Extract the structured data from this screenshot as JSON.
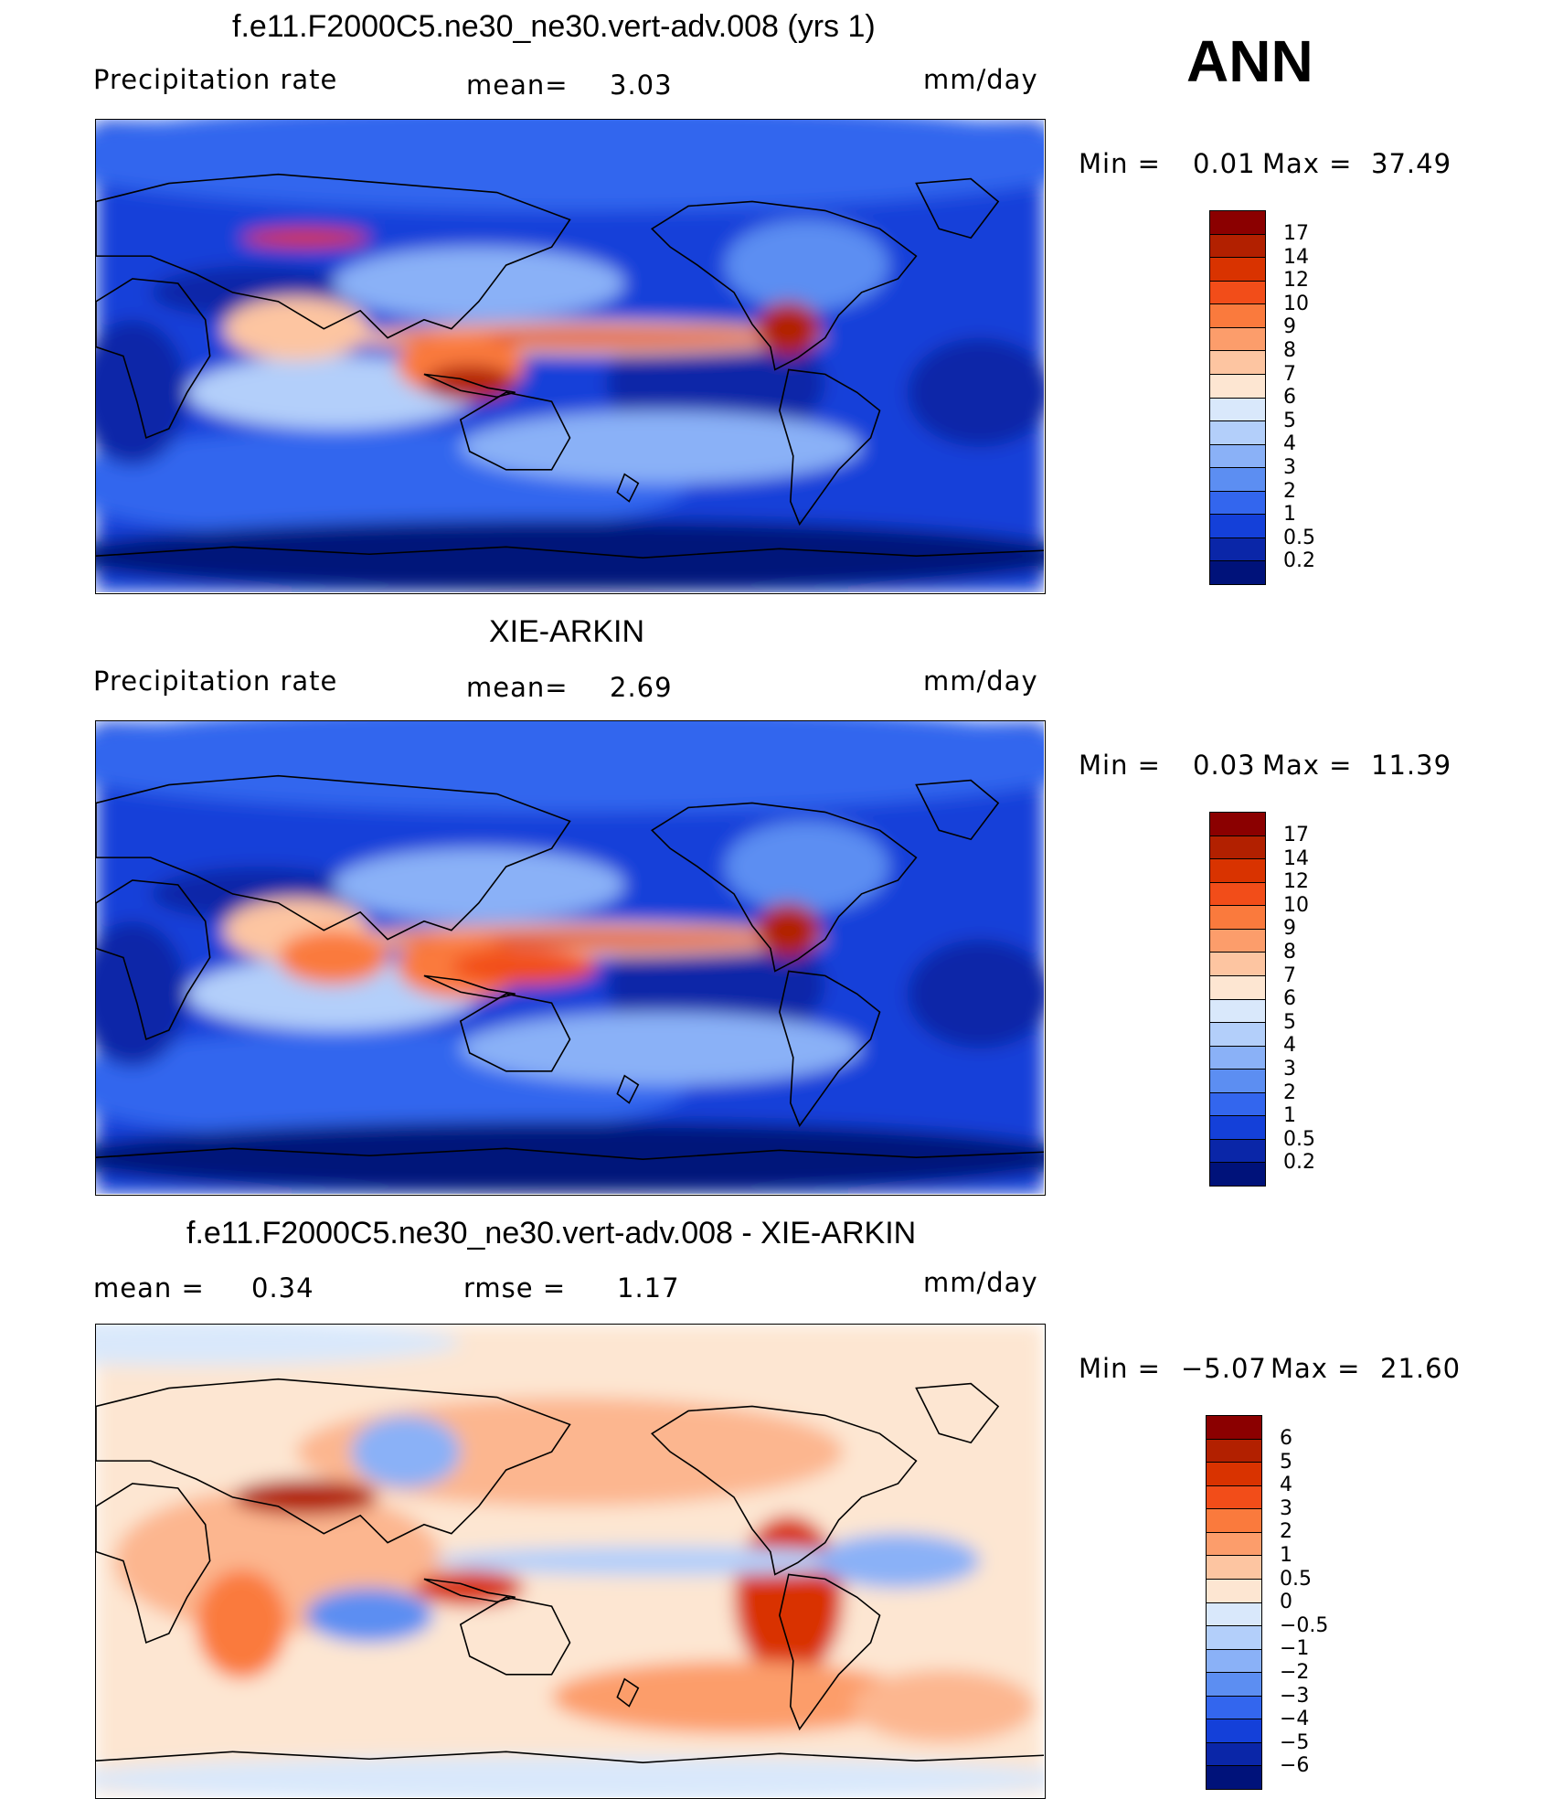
{
  "season": "ANN",
  "panels": [
    {
      "id": "model",
      "title": "f.e11.F2000C5.ne30_ne30.vert-adv.008 (yrs 1)",
      "left_label": "Precipitation  rate",
      "mid_label": "mean=",
      "mid_value": "3.03",
      "units": "mm/day",
      "min_label": "Min  =",
      "min_value": "0.01",
      "max_label": "Max  =",
      "max_value": "37.49",
      "colorbar": {
        "labels": [
          "17",
          "14",
          "12",
          "10",
          "9",
          "8",
          "7",
          "6",
          "5",
          "4",
          "3",
          "2",
          "1",
          "0.5",
          "0.2"
        ],
        "colors": [
          "#8b0000",
          "#b22000",
          "#d93300",
          "#f24d19",
          "#fa7a3d",
          "#fc9d6b",
          "#fdc5a1",
          "#fde6d2",
          "#d9e8fb",
          "#b3cffa",
          "#8ab1f7",
          "#5c8ef2",
          "#3366ee",
          "#1440d9",
          "#0a26a8",
          "#00127a"
        ]
      }
    },
    {
      "id": "obs",
      "title": "XIE-ARKIN",
      "left_label": "Precipitation  rate",
      "mid_label": "mean=",
      "mid_value": "2.69",
      "units": "mm/day",
      "min_label": "Min  =",
      "min_value": "0.03",
      "max_label": "Max  =",
      "max_value": "11.39",
      "colorbar": {
        "labels": [
          "17",
          "14",
          "12",
          "10",
          "9",
          "8",
          "7",
          "6",
          "5",
          "4",
          "3",
          "2",
          "1",
          "0.5",
          "0.2"
        ],
        "colors": [
          "#8b0000",
          "#b22000",
          "#d93300",
          "#f24d19",
          "#fa7a3d",
          "#fc9d6b",
          "#fdc5a1",
          "#fde6d2",
          "#d9e8fb",
          "#b3cffa",
          "#8ab1f7",
          "#5c8ef2",
          "#3366ee",
          "#1440d9",
          "#0a26a8",
          "#00127a"
        ]
      }
    },
    {
      "id": "diff",
      "title": "f.e11.F2000C5.ne30_ne30.vert-adv.008 - XIE-ARKIN",
      "left_label": "mean  =",
      "left_value": "0.34",
      "mid_label": "rmse  =",
      "mid_value": "1.17",
      "units": "mm/day",
      "min_label": "Min  =",
      "min_value": "−5.07",
      "max_label": "Max  =",
      "max_value": "21.60",
      "colorbar": {
        "labels": [
          "6",
          "5",
          "4",
          "3",
          "2",
          "1",
          "0.5",
          "0",
          "−0.5",
          "−1",
          "−2",
          "−3",
          "−4",
          "−5",
          "−6"
        ],
        "colors": [
          "#8b0000",
          "#b22000",
          "#d93300",
          "#f24d19",
          "#fa7a3d",
          "#fc9d6b",
          "#fdc5a1",
          "#fde6d2",
          "#d9e8fb",
          "#b3cffa",
          "#8ab1f7",
          "#5c8ef2",
          "#3366ee",
          "#1440d9",
          "#0a26a8",
          "#00127a"
        ]
      }
    }
  ]
}
